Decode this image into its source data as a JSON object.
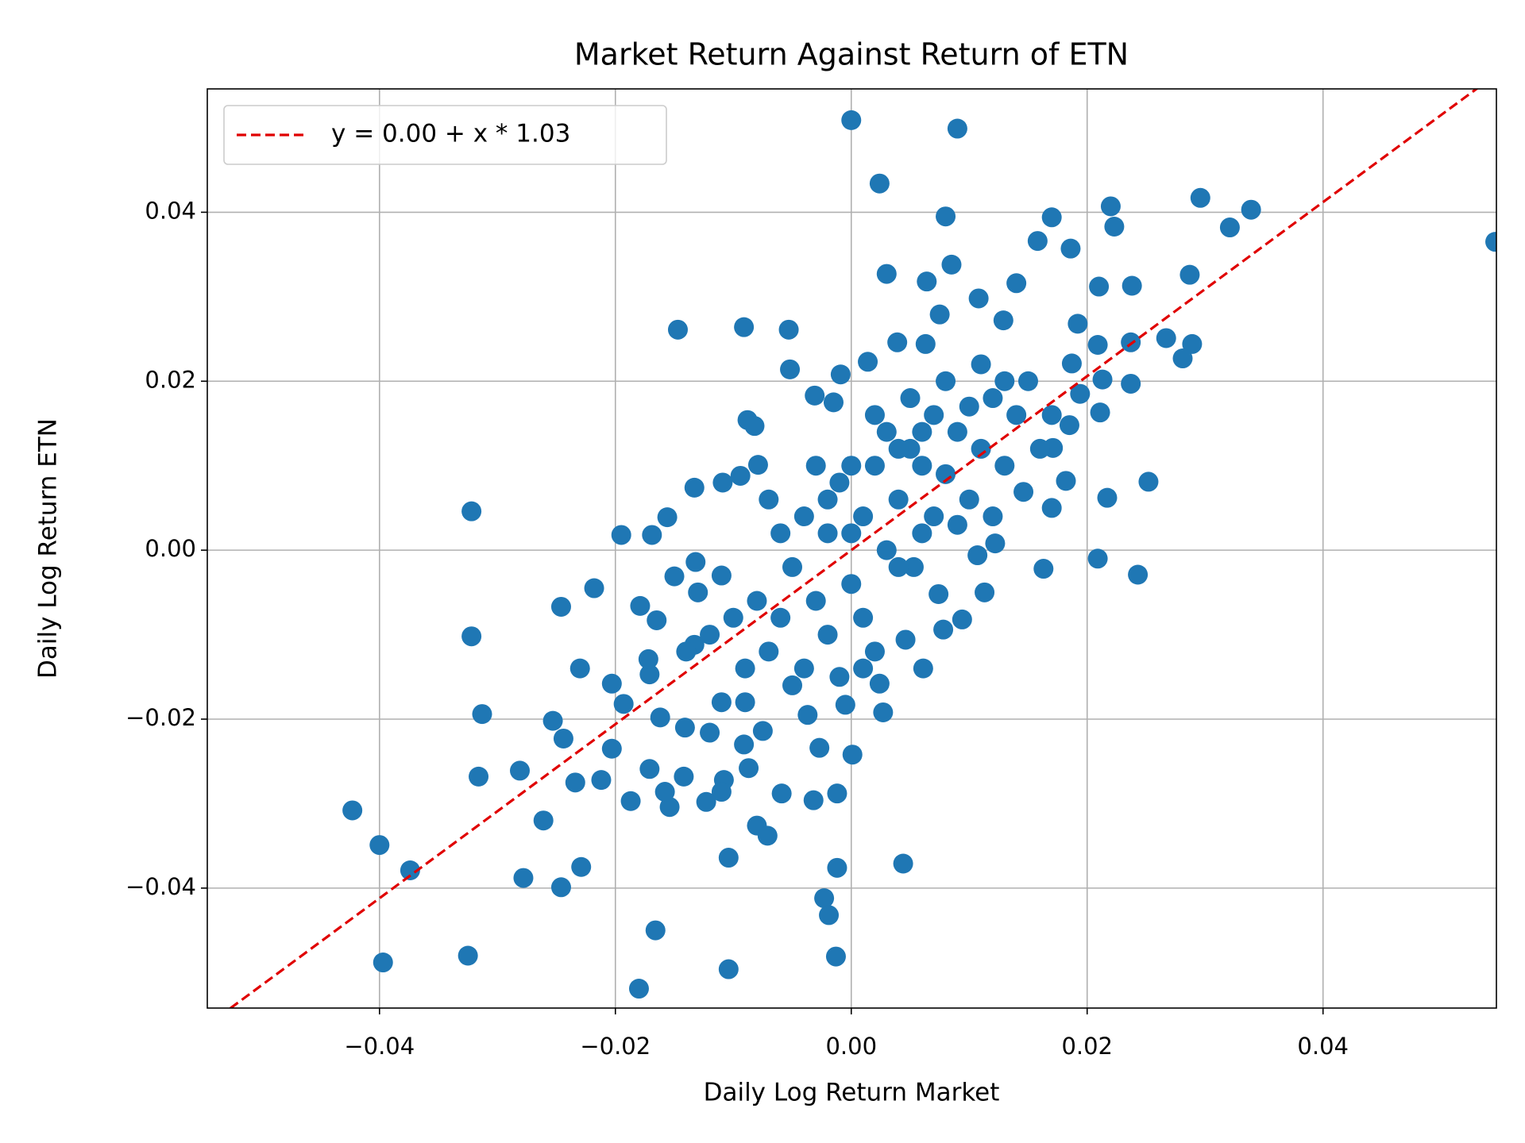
{
  "chart_data": {
    "type": "scatter",
    "title": "Market Return Against Return of ETN",
    "x_label": "Daily Log Return Market",
    "y_label": "Daily Log Return ETN",
    "xlim": [
      -0.0546,
      0.0547
    ],
    "ylim": [
      -0.0542,
      0.0546
    ],
    "xticks": [
      {
        "value": -0.04,
        "label": "−0.04"
      },
      {
        "value": -0.02,
        "label": "−0.02"
      },
      {
        "value": 0,
        "label": "0.00"
      },
      0.02,
      0.04
    ],
    "yticks": [
      {
        "value": -0.04,
        "label": "−0.04"
      },
      {
        "value": -0.02,
        "label": "−0.02"
      },
      {
        "value": 0,
        "label": "0.00"
      },
      0.02,
      0.04
    ],
    "grid": true,
    "legend": "upper left",
    "points": {
      "color": "#1f77b4",
      "x": [
        0,
        0.009,
        0.0024,
        0.008,
        0.017,
        0.022,
        0.0296,
        0.0339,
        0.0321,
        0.0546,
        0.0223,
        0.0158,
        0.0186,
        0.003,
        0.0064,
        0.0085,
        0.0287,
        0.0238,
        0.021,
        0.014,
        -0.0147,
        -0.0091,
        -0.0053,
        0.0289,
        0.0267,
        0.0281,
        -0.0322,
        0.0252,
        0.0217,
        0.0209,
        0.0243,
        0.0163,
        -0.0322,
        -0.0246,
        -0.0218,
        -0.0195,
        -0.0169,
        -0.0313,
        -0.023,
        -0.0253,
        -0.0244,
        -0.0423,
        -0.04,
        -0.0374,
        -0.0397,
        -0.0325,
        -0.0278,
        -0.0246,
        -0.0229,
        -0.0261,
        -0.0316,
        -0.0281,
        -0.0234,
        -0.0212,
        -0.0203,
        -0.0203,
        -0.0187,
        -0.018,
        -0.0166,
        -0.0104,
        -0.0104,
        -0.008,
        -0.0071,
        -0.0059,
        -0.0023,
        -0.0019,
        -0.0013,
        -0.0012,
        0.0044,
        -0.0012,
        -0.0032,
        0.0001,
        -0.0027,
        0.0027,
        -0.0005,
        -0.0037,
        -0.0108,
        -0.011,
        -0.0123,
        -0.0154,
        -0.0158,
        -0.0142,
        -0.0171,
        -0.0087,
        -0.0091,
        -0.012,
        -0.0075,
        -0.0141,
        -0.0162,
        -0.0193,
        -0.0171,
        -0.0172,
        -0.0133,
        -0.0179,
        -0.0165,
        -0.015,
        -0.0132,
        -0.0133,
        -0.0109,
        -0.0156,
        -0.0094,
        -0.0088,
        -0.0082,
        -0.0079,
        -0.0052,
        -0.0031,
        -0.0015,
        -0.0009,
        0.0014,
        0.0039,
        0.0063,
        0.0075,
        0.0108,
        0.0129,
        0.0192,
        0.0209,
        0.0237,
        0.0187,
        0.0213,
        0.0237,
        0.0194,
        0.0211,
        0.0185,
        0.0171,
        0.0182,
        0.017,
        0.0146,
        0.0122,
        0.0113,
        0.0107,
        0.0094,
        0.0078,
        0.0061,
        0.0046,
        0.0024,
        0.001,
        0.0074,
        0.0053,
        -0.006,
        -0.005,
        -0.004,
        -0.003,
        -0.002,
        -0.001,
        0,
        0.001,
        0.002,
        0.003,
        0.004,
        0.005,
        0.006,
        0.007,
        0.008,
        0.009,
        0.01,
        0.011,
        0.012,
        0.013,
        -0.007,
        -0.008,
        -0.009,
        -0.01,
        -0.011,
        -0.012,
        -0.004,
        -0.002,
        0,
        0.001,
        0.003,
        0.004,
        0.006,
        0.008,
        0.009,
        0.014,
        0.015,
        0.016,
        -0.003,
        -0.001,
        0.002,
        0.005,
        0.007,
        0.01,
        0.012,
        -0.006,
        -0.005,
        -0.013,
        -0.014,
        -0.007,
        0.002,
        0.011,
        0.013,
        0.017,
        0.004,
        -0.002,
        0.006,
        0,
        -0.009,
        -0.011
      ],
      "y": [
        0.0509,
        0.0499,
        0.0434,
        0.0395,
        0.0394,
        0.0407,
        0.0417,
        0.0403,
        0.0382,
        0.0365,
        0.0383,
        0.0366,
        0.0357,
        0.0327,
        0.0318,
        0.0338,
        0.0326,
        0.0313,
        0.0312,
        0.0316,
        0.0261,
        0.0264,
        0.0261,
        0.0244,
        0.0251,
        0.0227,
        0.0046,
        0.0081,
        0.0062,
        -0.001,
        -0.0029,
        -0.0022,
        -0.0102,
        -0.0067,
        -0.0045,
        0.0018,
        0.0018,
        -0.0194,
        -0.014,
        -0.0202,
        -0.0223,
        -0.0308,
        -0.0349,
        -0.0379,
        -0.0488,
        -0.048,
        -0.0388,
        -0.0399,
        -0.0375,
        -0.032,
        -0.0268,
        -0.0261,
        -0.0275,
        -0.0272,
        -0.0235,
        -0.0158,
        -0.0297,
        -0.0519,
        -0.045,
        -0.0496,
        -0.0364,
        -0.0326,
        -0.0338,
        -0.0288,
        -0.0412,
        -0.0432,
        -0.0481,
        -0.0376,
        -0.0371,
        -0.0288,
        -0.0296,
        -0.0242,
        -0.0234,
        -0.0192,
        -0.0183,
        -0.0195,
        -0.0272,
        -0.0286,
        -0.0298,
        -0.0304,
        -0.0286,
        -0.0268,
        -0.0259,
        -0.0258,
        -0.023,
        -0.0216,
        -0.0214,
        -0.021,
        -0.0198,
        -0.0182,
        -0.0147,
        -0.0129,
        -0.0112,
        -0.0066,
        -0.0083,
        -0.0031,
        -0.0014,
        0.0074,
        0.008,
        0.0039,
        0.0088,
        0.0154,
        0.0147,
        0.0101,
        0.0214,
        0.0183,
        0.0175,
        0.0208,
        0.0223,
        0.0246,
        0.0244,
        0.0279,
        0.0298,
        0.0272,
        0.0268,
        0.0243,
        0.0246,
        0.0221,
        0.0202,
        0.0197,
        0.0185,
        0.0163,
        0.0148,
        0.0121,
        0.0082,
        0.005,
        0.0069,
        0.0008,
        -0.005,
        -0.0006,
        -0.0082,
        -0.0094,
        -0.014,
        -0.0106,
        -0.0158,
        -0.014,
        -0.0052,
        -0.002,
        -0.008,
        -0.002,
        0.004,
        -0.006,
        0.002,
        0.008,
        -0.004,
        0.004,
        0.01,
        0.0,
        0.006,
        0.012,
        0.002,
        0.016,
        0.009,
        0.014,
        0.006,
        0.012,
        0.018,
        0.01,
        -0.012,
        -0.006,
        -0.014,
        -0.008,
        -0.003,
        -0.01,
        -0.014,
        -0.01,
        0.01,
        -0.008,
        0.014,
        -0.002,
        0.01,
        0.02,
        0.003,
        0.016,
        0.02,
        0.012,
        0.01,
        -0.015,
        -0.012,
        0.018,
        0.004,
        0.017,
        0.004,
        0.002,
        -0.016,
        -0.005,
        -0.012,
        0.006,
        0.016,
        0.022,
        0.02,
        0.016,
        0.012,
        0.006,
        0.014,
        0.002,
        -0.018,
        -0.018
      ]
    },
    "fit": {
      "label": "y = 0.00 + x * 1.03",
      "intercept": 0.0,
      "slope": 1.03,
      "color": "#e00000"
    }
  }
}
